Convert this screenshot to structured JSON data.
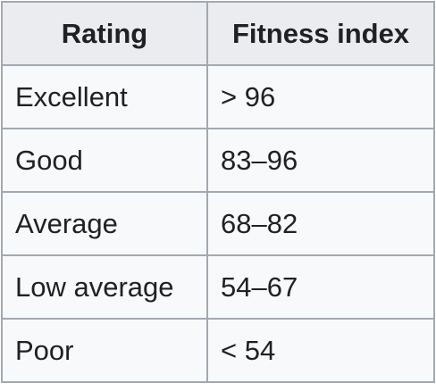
{
  "table": {
    "headers": [
      "Rating",
      "Fitness index"
    ],
    "rows": [
      [
        "Excellent",
        "> 96"
      ],
      [
        "Good",
        "83–96"
      ],
      [
        "Average",
        "68–82"
      ],
      [
        "Low average",
        "54–67"
      ],
      [
        "Poor",
        "< 54"
      ]
    ]
  }
}
